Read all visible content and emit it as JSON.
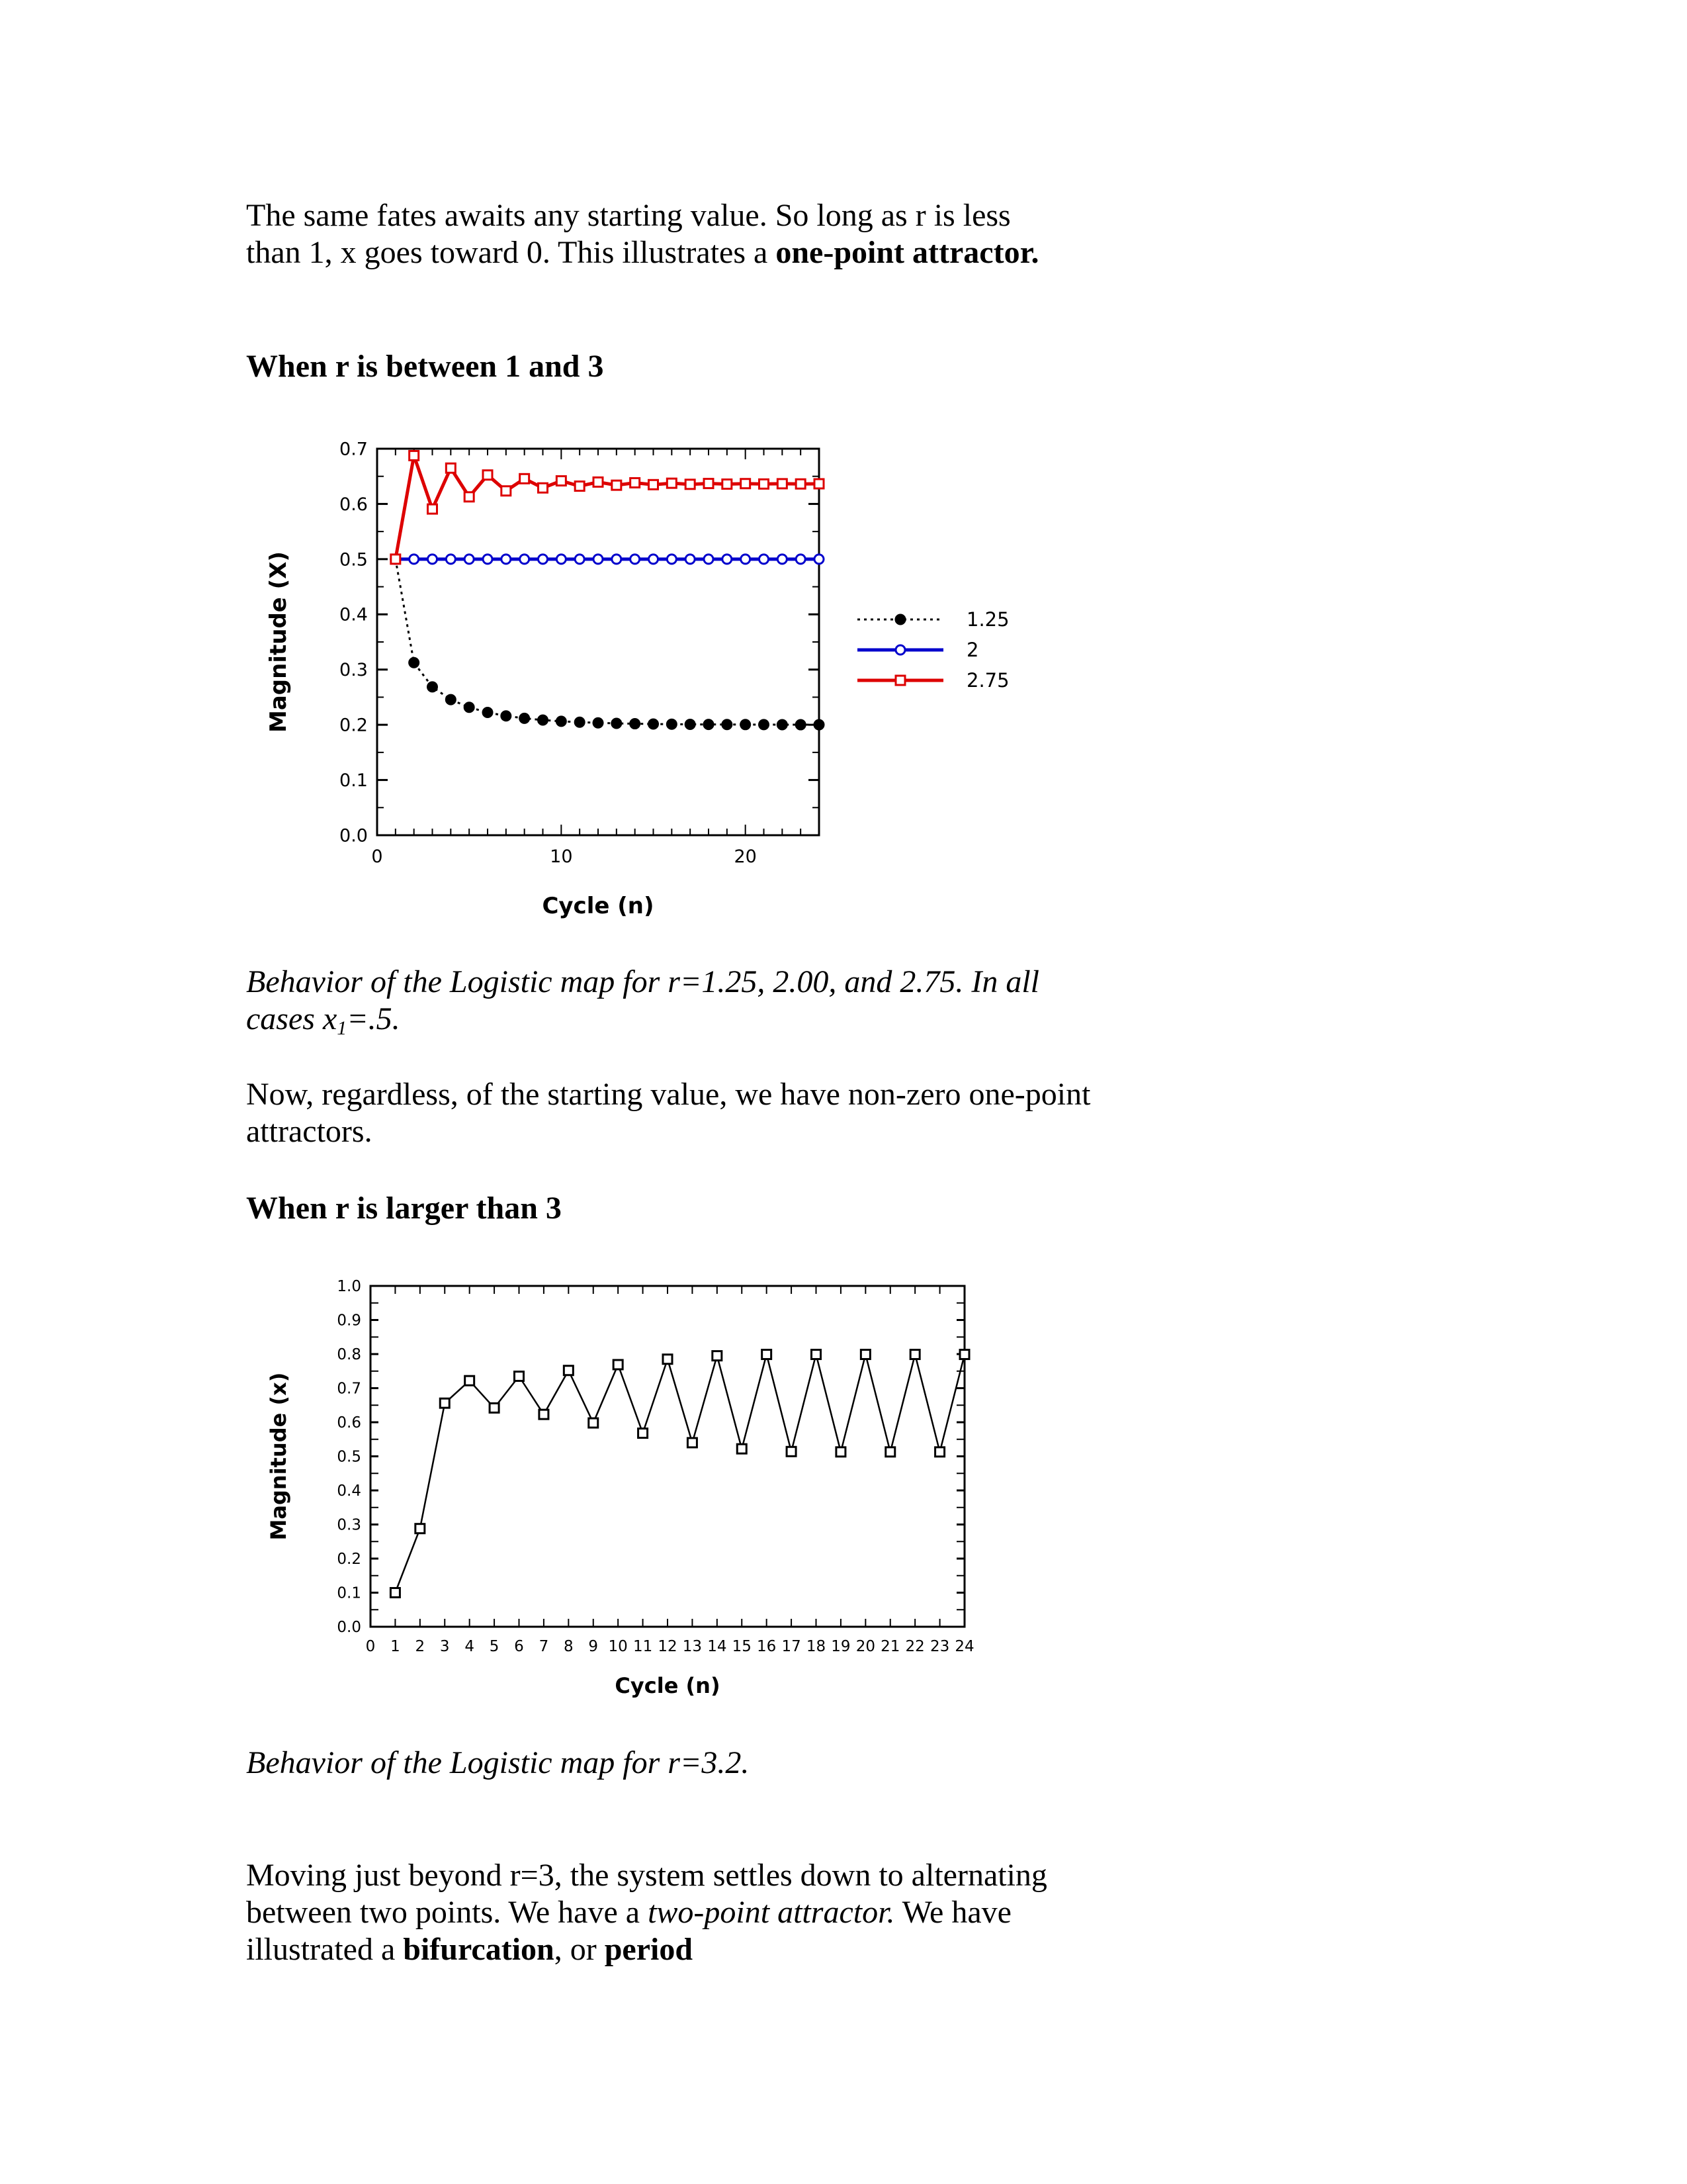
{
  "text": {
    "p1_a": "The same fates awaits any starting value. So long as r is less than 1, x goes toward 0. This illustrates a ",
    "p1_b": "one-point attractor.",
    "heading1": "When r is between 1 and 3",
    "caption1_a": "Behavior of the Logistic map for r=1.25, 2.00, and 2.75. In all cases x",
    "caption1_sub": "1",
    "caption1_b": "=.5.",
    "p2": "Now, regardless, of the starting value, we have non-zero one-point attractors.",
    "heading2": "When r is larger than 3",
    "caption2": "Behavior of the Logistic map for r=3.2.",
    "p3_a": "Moving just beyond r=3, the system settles down to alternating between two points. We have a ",
    "p3_b": "two-point attractor.",
    "p3_c": " We have illustrated a ",
    "p3_d": "bifurcation",
    "p3_e": ", or ",
    "p3_f": "period"
  },
  "chart_data": [
    {
      "type": "line",
      "xlabel": "Cycle (n)",
      "ylabel": "Magnitude (X)",
      "xlim": [
        0,
        24
      ],
      "ylim": [
        0,
        0.7
      ],
      "xticks": [
        0,
        10,
        20
      ],
      "yticks": [
        0.0,
        0.1,
        0.2,
        0.3,
        0.4,
        0.5,
        0.6,
        0.7
      ],
      "ytick_labels": [
        "0.0",
        "0.1",
        "0.2",
        "0.3",
        "0.4",
        "0.5",
        "0.6",
        "0.7"
      ],
      "legend_position": "right",
      "series": [
        {
          "name": "1.25",
          "color": "#000000",
          "style": "dotted",
          "marker": "filled-circle",
          "x": [
            1,
            2,
            3,
            4,
            5,
            6,
            7,
            8,
            9,
            10,
            11,
            12,
            13,
            14,
            15,
            16,
            17,
            18,
            19,
            20,
            21,
            22,
            23,
            24
          ],
          "y": [
            0.5,
            0.3125,
            0.2686,
            0.2456,
            0.2316,
            0.2224,
            0.2161,
            0.2117,
            0.2086,
            0.2063,
            0.2047,
            0.2035,
            0.2026,
            0.2019,
            0.2014,
            0.2011,
            0.2008,
            0.2006,
            0.2005,
            0.2004,
            0.2003,
            0.2002,
            0.2001,
            0.2001
          ]
        },
        {
          "name": "2",
          "color": "#0000cc",
          "style": "solid",
          "marker": "open-circle",
          "x": [
            1,
            2,
            3,
            4,
            5,
            6,
            7,
            8,
            9,
            10,
            11,
            12,
            13,
            14,
            15,
            16,
            17,
            18,
            19,
            20,
            21,
            22,
            23,
            24
          ],
          "y": [
            0.5,
            0.5,
            0.5,
            0.5,
            0.5,
            0.5,
            0.5,
            0.5,
            0.5,
            0.5,
            0.5,
            0.5,
            0.5,
            0.5,
            0.5,
            0.5,
            0.5,
            0.5,
            0.5,
            0.5,
            0.5,
            0.5,
            0.5,
            0.5
          ]
        },
        {
          "name": "2.75",
          "color": "#dd0000",
          "style": "solid",
          "marker": "open-square",
          "x": [
            1,
            2,
            3,
            4,
            5,
            6,
            7,
            8,
            9,
            10,
            11,
            12,
            13,
            14,
            15,
            16,
            17,
            18,
            19,
            20,
            21,
            22,
            23,
            24
          ],
          "y": [
            0.5,
            0.6875,
            0.5908,
            0.6649,
            0.6128,
            0.6524,
            0.6236,
            0.6457,
            0.629,
            0.6418,
            0.6322,
            0.6396,
            0.6339,
            0.6383,
            0.6349,
            0.6375,
            0.6355,
            0.637,
            0.6359,
            0.6368,
            0.6361,
            0.6366,
            0.6362,
            0.6365
          ]
        }
      ]
    },
    {
      "type": "line",
      "xlabel": "Cycle (n)",
      "ylabel": "Magnitude (x)",
      "xlim": [
        0,
        24
      ],
      "ylim": [
        0,
        1.0
      ],
      "xticks": [
        0,
        1,
        2,
        3,
        4,
        5,
        6,
        7,
        8,
        9,
        10,
        11,
        12,
        13,
        14,
        15,
        16,
        17,
        18,
        19,
        20,
        21,
        22,
        23,
        24
      ],
      "yticks": [
        0.0,
        0.1,
        0.2,
        0.3,
        0.4,
        0.5,
        0.6,
        0.7,
        0.8,
        0.9,
        1.0
      ],
      "ytick_labels": [
        "0.0",
        "0.1",
        "0.2",
        "0.3",
        "0.4",
        "0.5",
        "0.6",
        "0.7",
        "0.8",
        "0.9",
        "1.0"
      ],
      "series": [
        {
          "color": "#000000",
          "style": "solid",
          "marker": "open-square",
          "x": [
            1,
            2,
            3,
            4,
            5,
            6,
            7,
            8,
            9,
            10,
            11,
            12,
            13,
            14,
            15,
            16,
            17,
            18,
            19,
            20,
            21,
            22,
            23,
            24
          ],
          "y": [
            0.1,
            0.288,
            0.656,
            0.722,
            0.642,
            0.735,
            0.623,
            0.752,
            0.598,
            0.769,
            0.568,
            0.785,
            0.54,
            0.795,
            0.522,
            0.799,
            0.514,
            0.799,
            0.513,
            0.799,
            0.513,
            0.799,
            0.513,
            0.799
          ]
        }
      ]
    }
  ]
}
